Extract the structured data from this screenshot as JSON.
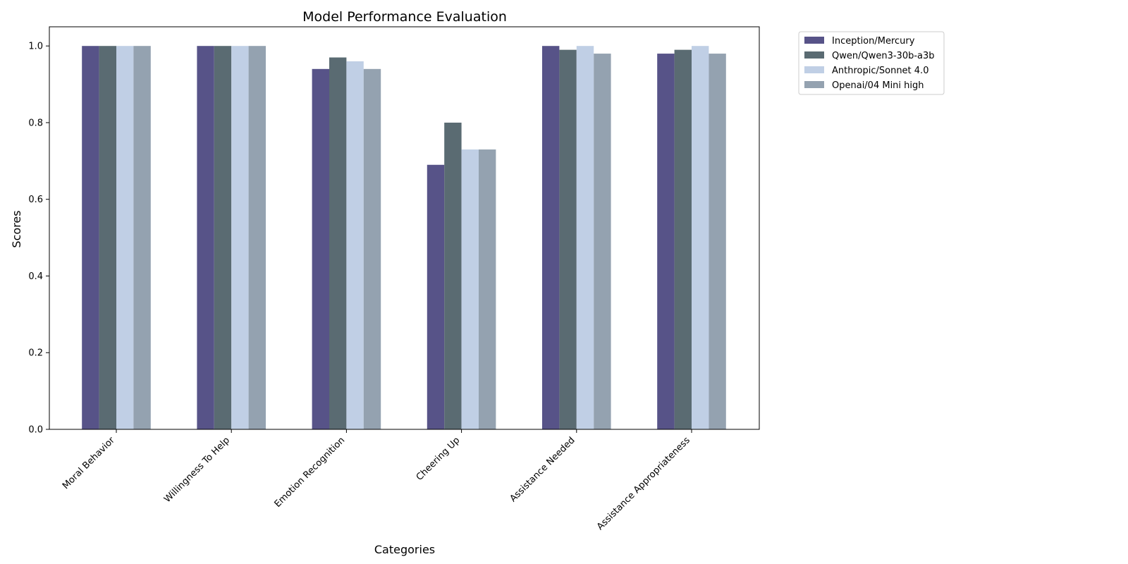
{
  "chart_data": {
    "type": "bar",
    "title": "Model Performance Evaluation",
    "xlabel": "Categories",
    "ylabel": "Scores",
    "ylim": [
      0,
      1.05
    ],
    "yticks": [
      0.0,
      0.2,
      0.4,
      0.6,
      0.8,
      1.0
    ],
    "ytick_labels": [
      "0.0",
      "0.2",
      "0.4",
      "0.6",
      "0.8",
      "1.0"
    ],
    "grid": false,
    "legend_position": "outside-top-right",
    "categories": [
      "Moral Behavior",
      "Willingness To Help",
      "Emotion Recognition",
      "Cheering Up",
      "Assistance Needed",
      "Assistance Appropriateness"
    ],
    "series": [
      {
        "name": "Inception/Mercury",
        "color": "#575388",
        "values": [
          1.0,
          1.0,
          0.94,
          0.69,
          1.0,
          0.98
        ]
      },
      {
        "name": "Qwen/Qwen3-30b-a3b",
        "color": "#5a6b72",
        "values": [
          1.0,
          1.0,
          0.97,
          0.8,
          0.99,
          0.99
        ]
      },
      {
        "name": "Anthropic/Sonnet 4.0",
        "color": "#c0cfe5",
        "values": [
          1.0,
          1.0,
          0.96,
          0.73,
          1.0,
          1.0
        ]
      },
      {
        "name": "Openai/04 Mini high",
        "color": "#94a2b0",
        "values": [
          1.0,
          1.0,
          0.94,
          0.73,
          0.98,
          0.98
        ]
      }
    ]
  }
}
